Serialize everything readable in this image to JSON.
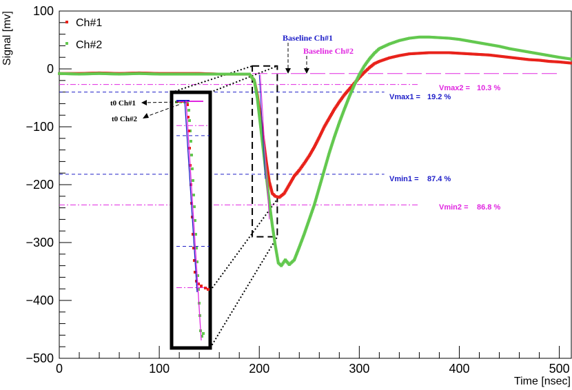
{
  "chart_data": {
    "type": "scatter",
    "title": "",
    "xlabel": "Time [nsec]",
    "ylabel": "Signal [mv]",
    "xlim": [
      0,
      512
    ],
    "ylim": [
      -500,
      100
    ],
    "xticks": [
      0,
      100,
      200,
      300,
      400,
      500
    ],
    "yticks": [
      100,
      0,
      -100,
      -200,
      -300,
      -400,
      -500
    ],
    "colors": {
      "ch1": "#e8221b",
      "ch2": "#63c84f",
      "blue": "#1e1ec8",
      "magenta": "#e026e0",
      "black": "#000000"
    },
    "series": [
      {
        "name": "Ch#1",
        "color": "#e8221b",
        "points": [
          [
            0,
            -8
          ],
          [
            20,
            -8
          ],
          [
            40,
            -7
          ],
          [
            60,
            -8
          ],
          [
            80,
            -7
          ],
          [
            100,
            -8
          ],
          [
            120,
            -8
          ],
          [
            140,
            -8
          ],
          [
            160,
            -9
          ],
          [
            180,
            -9
          ],
          [
            190,
            -9
          ],
          [
            195,
            -20
          ],
          [
            198,
            -45
          ],
          [
            201,
            -80
          ],
          [
            204,
            -120
          ],
          [
            207,
            -160
          ],
          [
            210,
            -195
          ],
          [
            213,
            -215
          ],
          [
            216,
            -220
          ],
          [
            220,
            -222
          ],
          [
            225,
            -215
          ],
          [
            230,
            -200
          ],
          [
            235,
            -185
          ],
          [
            240,
            -175
          ],
          [
            245,
            -163
          ],
          [
            250,
            -150
          ],
          [
            255,
            -135
          ],
          [
            260,
            -118
          ],
          [
            265,
            -100
          ],
          [
            270,
            -85
          ],
          [
            275,
            -70
          ],
          [
            280,
            -57
          ],
          [
            285,
            -45
          ],
          [
            290,
            -35
          ],
          [
            295,
            -25
          ],
          [
            300,
            -15
          ],
          [
            305,
            -6
          ],
          [
            310,
            2
          ],
          [
            315,
            9
          ],
          [
            320,
            13
          ],
          [
            330,
            19
          ],
          [
            340,
            23
          ],
          [
            350,
            26
          ],
          [
            360,
            27
          ],
          [
            370,
            28
          ],
          [
            380,
            28
          ],
          [
            390,
            28
          ],
          [
            400,
            27
          ],
          [
            410,
            26
          ],
          [
            420,
            25
          ],
          [
            430,
            24
          ],
          [
            440,
            22
          ],
          [
            450,
            20
          ],
          [
            460,
            18
          ],
          [
            470,
            16
          ],
          [
            480,
            15
          ],
          [
            490,
            13
          ],
          [
            500,
            12
          ],
          [
            512,
            10
          ]
        ]
      },
      {
        "name": "Ch#2",
        "color": "#63c84f",
        "points": [
          [
            0,
            -8
          ],
          [
            20,
            -9
          ],
          [
            40,
            -8
          ],
          [
            60,
            -9
          ],
          [
            80,
            -8
          ],
          [
            100,
            -9
          ],
          [
            120,
            -9
          ],
          [
            140,
            -9
          ],
          [
            160,
            -9
          ],
          [
            180,
            -9
          ],
          [
            190,
            -9
          ],
          [
            195,
            -20
          ],
          [
            198,
            -50
          ],
          [
            201,
            -95
          ],
          [
            204,
            -140
          ],
          [
            207,
            -185
          ],
          [
            210,
            -230
          ],
          [
            213,
            -270
          ],
          [
            216,
            -305
          ],
          [
            219,
            -335
          ],
          [
            222,
            -340
          ],
          [
            226,
            -330
          ],
          [
            230,
            -338
          ],
          [
            235,
            -330
          ],
          [
            240,
            -308
          ],
          [
            245,
            -285
          ],
          [
            250,
            -260
          ],
          [
            255,
            -235
          ],
          [
            260,
            -205
          ],
          [
            265,
            -175
          ],
          [
            270,
            -145
          ],
          [
            275,
            -118
          ],
          [
            280,
            -93
          ],
          [
            285,
            -70
          ],
          [
            290,
            -48
          ],
          [
            295,
            -28
          ],
          [
            300,
            -10
          ],
          [
            305,
            5
          ],
          [
            310,
            17
          ],
          [
            315,
            27
          ],
          [
            320,
            35
          ],
          [
            330,
            43
          ],
          [
            340,
            49
          ],
          [
            350,
            53
          ],
          [
            360,
            55
          ],
          [
            370,
            55
          ],
          [
            380,
            54
          ],
          [
            390,
            53
          ],
          [
            400,
            51
          ],
          [
            410,
            48
          ],
          [
            420,
            45
          ],
          [
            430,
            42
          ],
          [
            440,
            39
          ],
          [
            450,
            35
          ],
          [
            460,
            32
          ],
          [
            470,
            29
          ],
          [
            480,
            26
          ],
          [
            490,
            23
          ],
          [
            500,
            20
          ],
          [
            512,
            17
          ]
        ]
      }
    ],
    "reference_lines": [
      {
        "label": "Vmax1 = 19.2 %",
        "y": -40,
        "x_range": [
          0,
          325
        ],
        "color": "#1e1ec8",
        "style": "dashed"
      },
      {
        "label": "Vmin1 = 87.4 %",
        "y": -182,
        "x_range": [
          0,
          325
        ],
        "color": "#1e1ec8",
        "style": "dashed"
      },
      {
        "label": "Vmax2 = 10.3 %",
        "y": -27,
        "x_range": [
          0,
          360
        ],
        "color": "#e026e0",
        "style": "dashdot"
      },
      {
        "label": "Vmin2 = 86.8 %",
        "y": -235,
        "x_range": [
          0,
          360
        ],
        "color": "#e026e0",
        "style": "dashdot"
      },
      {
        "label": "Baseline",
        "y": -8,
        "x_range": [
          0,
          500
        ],
        "color": "#e026e0",
        "style": "longdash"
      }
    ],
    "legend": {
      "position": "top-left",
      "entries": [
        "Ch#1",
        "Ch#2"
      ]
    },
    "annotations": {
      "baseline_ch1": "Baseline Ch#1",
      "baseline_ch2": "Baseline Ch#2",
      "t0_ch1": "t0 Ch#1",
      "t0_ch2": "t0 Ch#2",
      "vmax1_name": "Vmax1 =",
      "vmax1_value": "19.2 %",
      "vmax2_name": "Vmax2 =",
      "vmax2_value": "10.3 %",
      "vmin1_name": "Vmin1 =",
      "vmin1_value": "87.4 %",
      "vmin2_name": "Vmin2 =",
      "vmin2_value": "86.8 %"
    },
    "zoom_region": {
      "x_range": [
        193,
        218
      ],
      "y_range": [
        -290,
        5
      ]
    }
  }
}
